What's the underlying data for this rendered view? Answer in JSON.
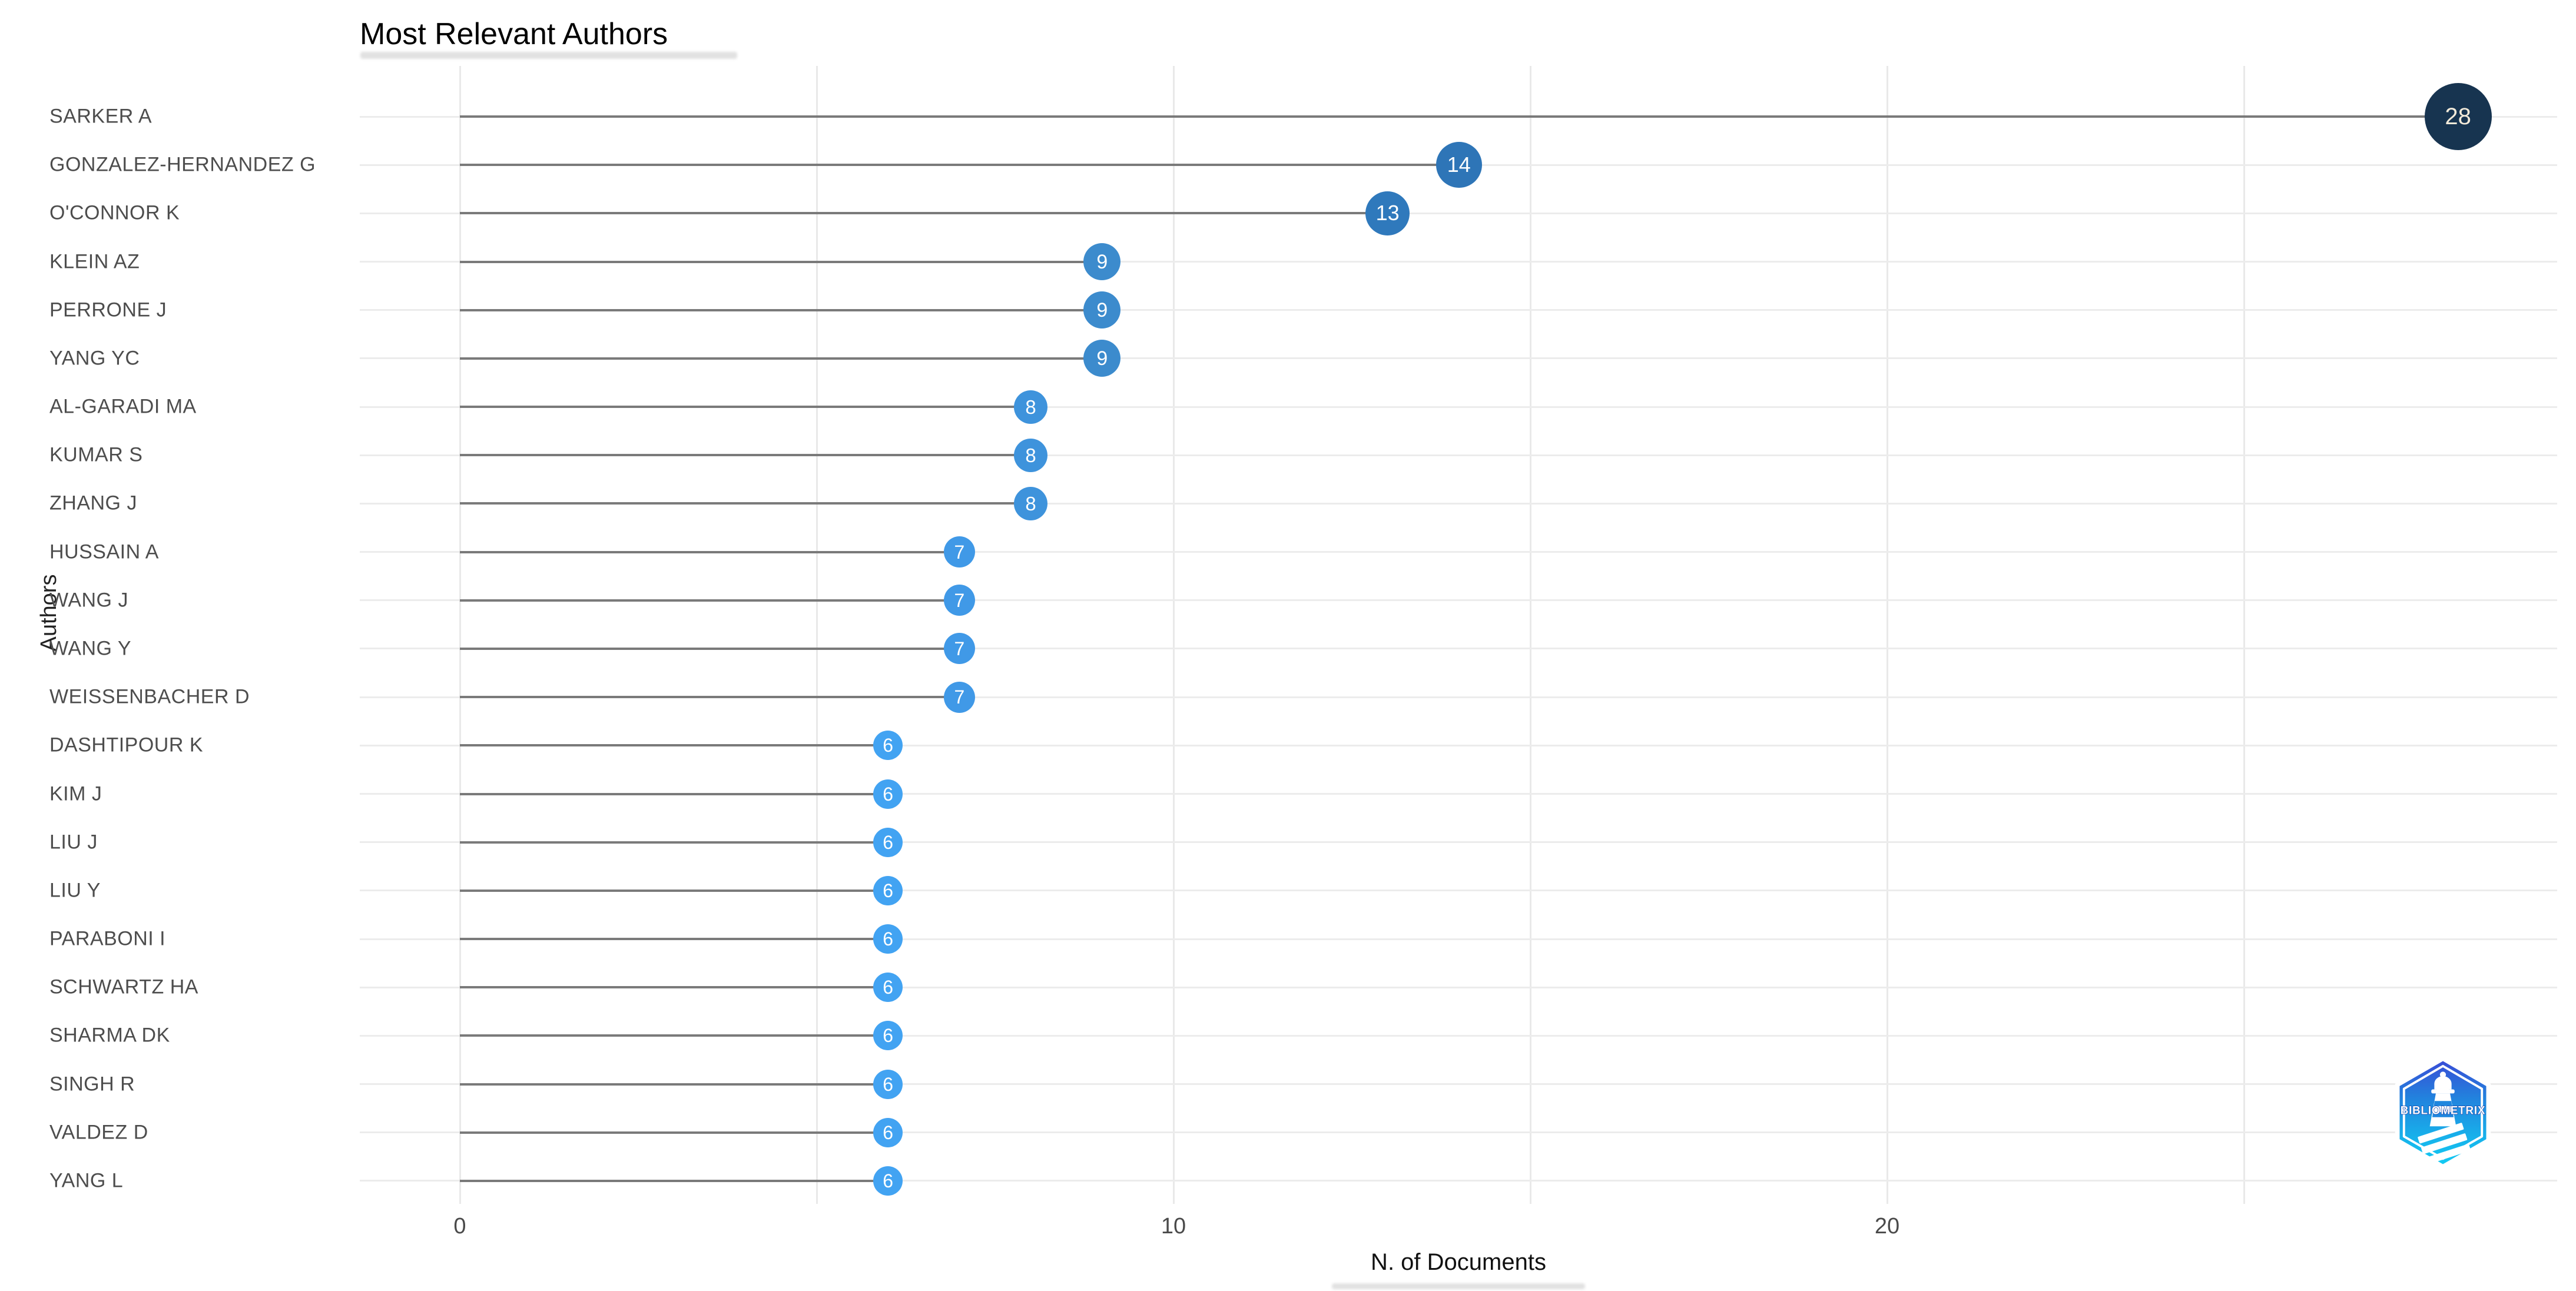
{
  "title": "Most Relevant Authors",
  "axes": {
    "x": {
      "title": "N. of Documents",
      "major_ticks": [
        {
          "value": 0,
          "label": "0"
        },
        {
          "value": 10,
          "label": "10"
        },
        {
          "value": 20,
          "label": "20"
        }
      ],
      "minor_ticks": [
        5,
        15,
        25
      ]
    },
    "y": {
      "title": "Authors"
    }
  },
  "chart_data": {
    "type": "bar",
    "variant": "horizontal-lollipop (stem + labeled dot)",
    "title": "Most Relevant Authors",
    "xlabel": "N. of Documents",
    "ylabel": "Authors",
    "xlim": [
      0,
      29.4
    ],
    "grid": true,
    "legend": "none",
    "categories": [
      "SARKER A",
      "GONZALEZ-HERNANDEZ G",
      "O'CONNOR K",
      "KLEIN AZ",
      "PERRONE J",
      "YANG YC",
      "AL-GARADI MA",
      "KUMAR S",
      "ZHANG J",
      "HUSSAIN A",
      "WANG J",
      "WANG Y",
      "WEISSENBACHER D",
      "DASHTIPOUR K",
      "KIM J",
      "LIU J",
      "LIU Y",
      "PARABONI I",
      "SCHWARTZ HA",
      "SHARMA DK",
      "SINGH R",
      "VALDEZ D",
      "YANG L"
    ],
    "values": [
      28,
      14,
      13,
      9,
      9,
      9,
      8,
      8,
      8,
      7,
      7,
      7,
      7,
      6,
      6,
      6,
      6,
      6,
      6,
      6,
      6,
      6,
      6
    ]
  },
  "style": {
    "value_styles": {
      "28": {
        "color": "#173450",
        "diameter": 114,
        "font_size": 40,
        "text_color": "#f2ead9"
      },
      "14": {
        "color": "#2e75b7",
        "diameter": 78,
        "font_size": 36,
        "text_color": "#ffffff"
      },
      "13": {
        "color": "#2f79bc",
        "diameter": 75,
        "font_size": 36,
        "text_color": "#ffffff"
      },
      "9": {
        "color": "#3c8bcd",
        "diameter": 63,
        "font_size": 34,
        "text_color": "#ffffff"
      },
      "8": {
        "color": "#3e93dc",
        "diameter": 57,
        "font_size": 33,
        "text_color": "#ffffff"
      },
      "7": {
        "color": "#4099e7",
        "diameter": 53,
        "font_size": 32,
        "text_color": "#ffffff"
      },
      "6": {
        "color": "#42a3f2",
        "diameter": 50,
        "font_size": 32,
        "text_color": "#ffffff"
      }
    },
    "stem_color": "#7a7a7a",
    "grid_color": "#e9e9e9",
    "row_line_color": "#ececec",
    "label_color": "#4d4d4d",
    "title_color": "#000000"
  },
  "logo": {
    "name": "bibliometrix-badge",
    "label": "BIBLIOMETRIX"
  }
}
